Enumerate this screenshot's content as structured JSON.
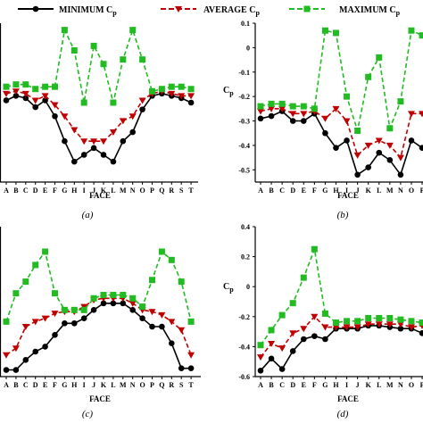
{
  "legend": [
    {
      "label": "MINIMUM C",
      "sub": "p",
      "color": "#000000",
      "marker": "circle",
      "dash": "solid"
    },
    {
      "label": "AVERAGE C",
      "sub": "p",
      "color": "#c00000",
      "marker": "triangle-down",
      "dash": "dashed"
    },
    {
      "label": "MAXIMUM C",
      "sub": "p",
      "color": "#22bb22",
      "marker": "square",
      "dash": "dashed"
    }
  ],
  "chart_data": [
    {
      "type": "line",
      "panel_label": "(a)",
      "xlabel": "FACE",
      "ylabel": "",
      "categories": [
        "A",
        "B",
        "C",
        "D",
        "E",
        "F",
        "G",
        "H",
        "I",
        "J",
        "K",
        "L",
        "M",
        "N",
        "O",
        "P",
        "Q",
        "R",
        "S",
        "T"
      ],
      "ylim": [
        -0.6,
        0.1
      ],
      "yticks": [],
      "series": [
        {
          "name": "MINIMUM Cp",
          "values": [
            -0.24,
            -0.22,
            -0.23,
            -0.27,
            -0.24,
            -0.31,
            -0.42,
            -0.51,
            -0.48,
            -0.45,
            -0.48,
            -0.51,
            -0.42,
            -0.38,
            -0.28,
            -0.22,
            -0.21,
            -0.22,
            -0.23,
            -0.25
          ]
        },
        {
          "name": "AVERAGE Cp",
          "values": [
            -0.21,
            -0.2,
            -0.21,
            -0.24,
            -0.22,
            -0.26,
            -0.31,
            -0.37,
            -0.42,
            -0.42,
            -0.42,
            -0.38,
            -0.33,
            -0.31,
            -0.24,
            -0.21,
            -0.2,
            -0.21,
            -0.22,
            -0.22
          ]
        },
        {
          "name": "MAXIMUM Cp",
          "values": [
            -0.18,
            -0.17,
            -0.17,
            -0.19,
            -0.18,
            -0.18,
            0.07,
            -0.02,
            -0.25,
            0.0,
            -0.08,
            -0.25,
            -0.06,
            0.07,
            -0.06,
            -0.2,
            -0.19,
            -0.18,
            -0.18,
            -0.19
          ]
        }
      ]
    },
    {
      "type": "line",
      "panel_label": "(b)",
      "xlabel": "FACE",
      "ylabel": "Cp",
      "categories": [
        "A",
        "B",
        "C",
        "D",
        "E",
        "F",
        "G",
        "H",
        "I",
        "J",
        "K",
        "L",
        "M",
        "N",
        "O",
        "P"
      ],
      "ylim": [
        -0.55,
        0.1
      ],
      "yticks": [
        "0.1",
        "0",
        "-0.1",
        "-0.2",
        "-0.3",
        "-0.4",
        "-0.5"
      ],
      "series": [
        {
          "name": "MINIMUM Cp",
          "values": [
            -0.29,
            -0.28,
            -0.26,
            -0.3,
            -0.3,
            -0.27,
            -0.35,
            -0.41,
            -0.38,
            -0.52,
            -0.49,
            -0.43,
            -0.46,
            -0.52,
            -0.38,
            -0.41
          ]
        },
        {
          "name": "AVERAGE Cp",
          "values": [
            -0.26,
            -0.25,
            -0.25,
            -0.27,
            -0.27,
            -0.26,
            -0.29,
            -0.25,
            -0.3,
            -0.44,
            -0.4,
            -0.38,
            -0.4,
            -0.45,
            -0.27,
            -0.27
          ]
        },
        {
          "name": "MAXIMUM Cp",
          "values": [
            -0.24,
            -0.23,
            -0.23,
            -0.24,
            -0.24,
            -0.25,
            0.07,
            0.06,
            -0.2,
            -0.34,
            -0.12,
            -0.04,
            -0.33,
            -0.22,
            0.07,
            0.05
          ]
        }
      ]
    },
    {
      "type": "line",
      "panel_label": "(c)",
      "xlabel": "FACE",
      "ylabel": "",
      "categories": [
        "A",
        "B",
        "C",
        "D",
        "E",
        "F",
        "G",
        "H",
        "I",
        "J",
        "K",
        "L",
        "M",
        "N",
        "O",
        "P",
        "Q",
        "R",
        "S",
        "T"
      ],
      "ylim": [
        -0.6,
        0.3
      ],
      "yticks": [],
      "series": [
        {
          "name": "MINIMUM Cp",
          "values": [
            -0.56,
            -0.56,
            -0.5,
            -0.45,
            -0.42,
            -0.35,
            -0.28,
            -0.28,
            -0.25,
            -0.2,
            -0.16,
            -0.16,
            -0.16,
            -0.2,
            -0.25,
            -0.3,
            -0.3,
            -0.4,
            -0.55,
            -0.55
          ]
        },
        {
          "name": "AVERAGE Cp",
          "values": [
            -0.47,
            -0.43,
            -0.3,
            -0.27,
            -0.25,
            -0.22,
            -0.21,
            -0.21,
            -0.18,
            -0.14,
            -0.13,
            -0.13,
            -0.13,
            -0.16,
            -0.2,
            -0.21,
            -0.23,
            -0.27,
            -0.32,
            -0.47
          ]
        },
        {
          "name": "MAXIMUM Cp",
          "values": [
            -0.27,
            -0.1,
            -0.03,
            0.07,
            0.15,
            -0.1,
            -0.2,
            -0.2,
            -0.2,
            -0.13,
            -0.11,
            -0.11,
            -0.11,
            -0.13,
            -0.18,
            -0.02,
            0.15,
            0.1,
            -0.03,
            -0.27
          ]
        }
      ]
    },
    {
      "type": "line",
      "panel_label": "(d)",
      "xlabel": "FACE",
      "ylabel": "Cp",
      "categories": [
        "A",
        "B",
        "C",
        "D",
        "E",
        "F",
        "G",
        "H",
        "I",
        "J",
        "K",
        "L",
        "M",
        "N",
        "O",
        "P"
      ],
      "ylim": [
        -0.6,
        0.4
      ],
      "yticks": [
        "0.4",
        "0.2",
        "0",
        "-0.2",
        "-0.4",
        "-0.6"
      ],
      "series": [
        {
          "name": "MINIMUM Cp",
          "values": [
            -0.56,
            -0.48,
            -0.55,
            -0.43,
            -0.35,
            -0.33,
            -0.35,
            -0.28,
            -0.28,
            -0.28,
            -0.26,
            -0.26,
            -0.27,
            -0.28,
            -0.28,
            -0.31
          ]
        },
        {
          "name": "AVERAGE Cp",
          "values": [
            -0.47,
            -0.38,
            -0.41,
            -0.31,
            -0.28,
            -0.2,
            -0.27,
            -0.27,
            -0.27,
            -0.27,
            -0.25,
            -0.25,
            -0.25,
            -0.25,
            -0.27,
            -0.26
          ]
        },
        {
          "name": "MAXIMUM Cp",
          "values": [
            -0.39,
            -0.29,
            -0.19,
            -0.11,
            0.06,
            0.25,
            -0.18,
            -0.24,
            -0.23,
            -0.23,
            -0.21,
            -0.21,
            -0.21,
            -0.22,
            -0.23,
            -0.24
          ]
        }
      ]
    }
  ]
}
